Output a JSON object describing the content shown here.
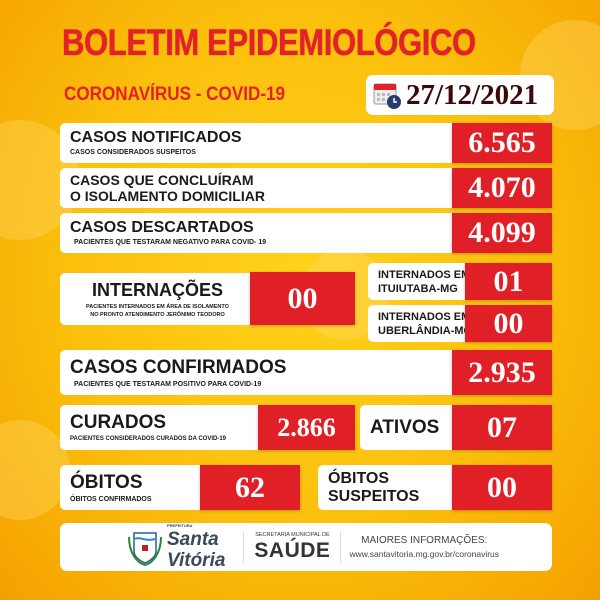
{
  "header": {
    "title": "BOLETIM EPIDEMIOLÓGICO",
    "subtitle": "CORONAVÍRUS - COVID-19",
    "date": "27/12/2021",
    "date_icon": "calendar-clock-icon"
  },
  "colors": {
    "accent_red": "#e11f26",
    "background": "#fbbf0c",
    "dark_text": "#3a0a0a"
  },
  "stats": {
    "notificados": {
      "label": "CASOS NOTIFICADOS",
      "sub": "CASOS CONSIDERADOS SUSPEITOS",
      "value": "6.565"
    },
    "isolamento": {
      "label1": "CASOS QUE CONCLUÍRAM",
      "label2": "O ISOLAMENTO DOMICILIAR",
      "value": "4.070"
    },
    "descartados": {
      "label": "CASOS DESCARTADOS",
      "sub": "PACIENTES QUE TESTARAM NEGATIVO PARA COVID- 19",
      "value": "4.099"
    },
    "internacoes": {
      "label": "INTERNAÇÕES",
      "sub1": "PACIENTES INTERNADOS EM ÁREA DE ISOLAMENTO",
      "sub2": "NO PRONTO ATENDIMENTO JERÔNIMO TEODORO",
      "value": "00"
    },
    "ituiutaba": {
      "label1": "INTERNADOS EM",
      "label2": "ITUIUTABA-MG",
      "value": "01"
    },
    "uberlandia": {
      "label1": "INTERNADOS EM",
      "label2": "UBERLÂNDIA-MG",
      "value": "00"
    },
    "confirmados": {
      "label": "CASOS CONFIRMADOS",
      "sub": "PACIENTES QUE TESTARAM POSITIVO PARA COVID-19",
      "value": "2.935"
    },
    "curados": {
      "label": "CURADOS",
      "sub": "PACIENTES CONSIDERADOS CURADOS DA COVID-19",
      "value": "2.866"
    },
    "ativos": {
      "label": "ATIVOS",
      "value": "07"
    },
    "obitos": {
      "label": "ÓBITOS",
      "sub": "ÓBITOS CONFIRMADOS",
      "value": "62"
    },
    "obitos_suspeitos": {
      "label1": "ÓBITOS",
      "label2": "SUSPEITOS",
      "value": "00"
    }
  },
  "footer": {
    "prefeitura": "PREFEITURA",
    "city1": "Santa",
    "city2": "Vitória",
    "secretaria": "SECRETARIA MUNICIPAL DE",
    "saude": "SAÚDE",
    "info_label": "MAIORES INFORMAÇÕES:",
    "info_url": "www.santavitoria.mg.gov.br/coronavirus"
  }
}
